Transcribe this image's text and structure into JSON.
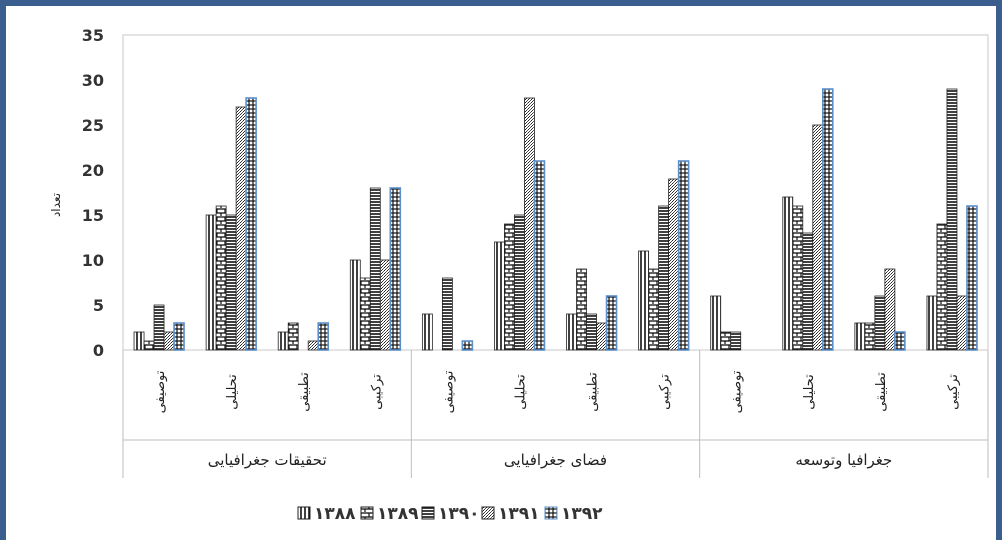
{
  "chart_data": {
    "type": "bar",
    "ylabel": "تعداد",
    "ylim": [
      0,
      35
    ],
    "yticks": [
      0,
      5,
      10,
      15,
      20,
      25,
      30,
      35
    ],
    "groups": [
      {
        "name": "تحقیقات جغرافیایی",
        "categories": [
          "توصیفی",
          "تحلیلی",
          "تطبیقی",
          "ترکیبی"
        ]
      },
      {
        "name": "فضای جغرافیایی",
        "categories": [
          "توصیفی",
          "تحلیلی",
          "تطبیقی",
          "ترکیبی"
        ]
      },
      {
        "name": "جغرافیا وتوسعه",
        "categories": [
          "توصیفی",
          "تحلیلی",
          "تطبیقی",
          "ترکیبی"
        ]
      }
    ],
    "series": [
      {
        "name": "۱۳۸۸",
        "values": [
          2,
          15,
          2,
          10,
          4,
          12,
          4,
          11,
          6,
          17,
          3,
          6
        ]
      },
      {
        "name": "۱۳۸۹",
        "values": [
          1,
          16,
          3,
          8,
          0,
          14,
          9,
          9,
          2,
          16,
          3,
          14
        ]
      },
      {
        "name": "۱۳۹۰",
        "values": [
          5,
          15,
          0,
          18,
          8,
          15,
          4,
          16,
          2,
          13,
          6,
          29
        ]
      },
      {
        "name": "۱۳۹۱",
        "values": [
          2,
          27,
          1,
          10,
          0,
          28,
          3,
          19,
          0,
          25,
          9,
          6
        ]
      },
      {
        "name": "۱۳۹۲",
        "values": [
          3,
          28,
          3,
          18,
          1,
          21,
          6,
          21,
          0,
          29,
          2,
          16
        ]
      }
    ],
    "grid": false,
    "legend_position": "bottom",
    "colors": {
      "bar_stroke": "#222222",
      "highlight_stroke": "#5b8fc9",
      "frame": "#3a5f8f"
    }
  }
}
